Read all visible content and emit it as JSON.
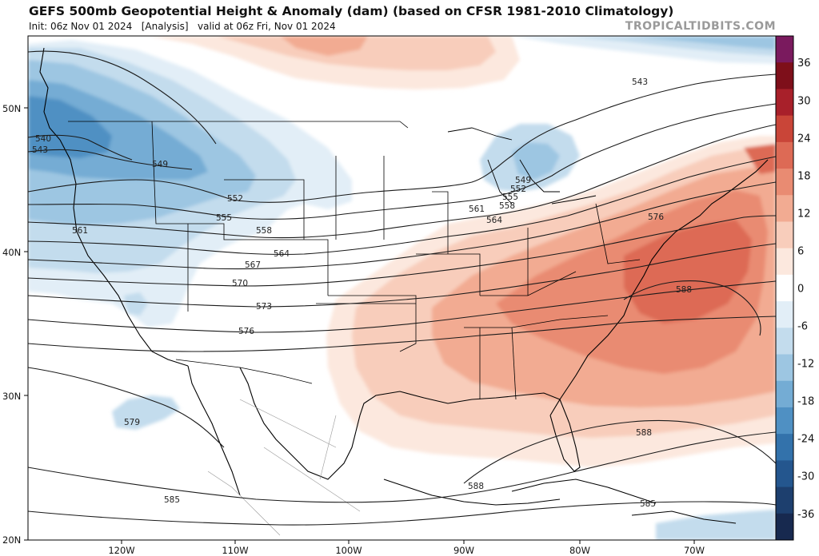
{
  "header": {
    "title": "GEFS 500mb Geopotential Height & Anomaly (dam) (based on CFSR 1981-2010 Climatology)",
    "init": "Init: 06z Nov 01 2024",
    "analysis": "[Analysis]",
    "valid": "valid at 06z Fri, Nov 01 2024",
    "brand": "TROPICALTIDBITS.COM"
  },
  "axes": {
    "lat_labels": [
      "50N",
      "40N",
      "30N",
      "20N"
    ],
    "lon_labels": [
      "120W",
      "110W",
      "100W",
      "90W",
      "80W",
      "70W"
    ]
  },
  "colorbar": {
    "ticks": [
      "36",
      "30",
      "24",
      "18",
      "12",
      "6",
      "0",
      "-6",
      "-12",
      "-18",
      "-24",
      "-30",
      "-36"
    ],
    "colors": [
      "#7a1a5e",
      "#7e0f1a",
      "#a8202a",
      "#c94538",
      "#dd6a55",
      "#e98b72",
      "#f2ab92",
      "#f8cdbb",
      "#fce8de",
      "#ffffff",
      "#e2eef7",
      "#c3dced",
      "#9dc6e2",
      "#74acd4",
      "#4f90c3",
      "#3372ab",
      "#24568e",
      "#1d3f6e",
      "#17294f"
    ]
  },
  "contours": {
    "labels": [
      "540",
      "543",
      "549",
      "552",
      "555",
      "558",
      "561",
      "564",
      "567",
      "570",
      "573",
      "576",
      "579",
      "585",
      "588",
      "543",
      "549",
      "552",
      "555",
      "558",
      "561",
      "564",
      "576",
      "588",
      "588",
      "588",
      "585"
    ]
  }
}
